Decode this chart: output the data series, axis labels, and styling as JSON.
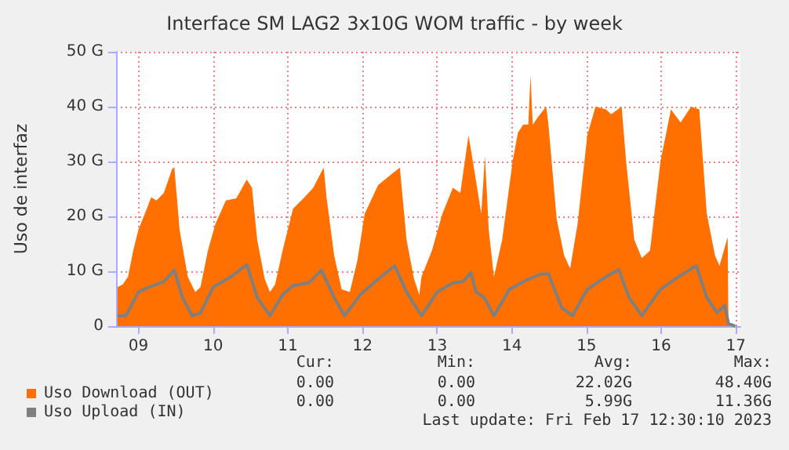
{
  "chart_data": {
    "type": "area",
    "title": "Interface SM LAG2 3x10G WOM traffic - by week",
    "ylabel": "Uso de interfaz",
    "xlim": [
      8.7,
      17.06
    ],
    "xticks": [
      {
        "value": 9,
        "label": "09"
      },
      {
        "value": 10,
        "label": "10"
      },
      {
        "value": 11,
        "label": "11"
      },
      {
        "value": 12,
        "label": "12"
      },
      {
        "value": 13,
        "label": "13"
      },
      {
        "value": 14,
        "label": "14"
      },
      {
        "value": 15,
        "label": "15"
      },
      {
        "value": 16,
        "label": "16"
      },
      {
        "value": 17,
        "label": "17"
      }
    ],
    "ylim": [
      0,
      50
    ],
    "yticks": [
      0,
      {
        "value": 10,
        "label": "10 G"
      },
      {
        "value": 20,
        "label": "20 G"
      },
      {
        "value": 30,
        "label": "30 G"
      },
      {
        "value": 40,
        "label": "40 G"
      },
      {
        "value": 50,
        "label": "50 G"
      }
    ],
    "grid": true,
    "legend": "bottom left",
    "marker": "none",
    "series": [
      {
        "name": "Uso Download (OUT)",
        "color": "#ff7000",
        "x": [
          8.72,
          8.79,
          8.86,
          8.93,
          9.0,
          9.1,
          9.17,
          9.24,
          9.34,
          9.45,
          9.48,
          9.55,
          9.66,
          9.76,
          9.83,
          9.93,
          10.03,
          10.17,
          10.31,
          10.45,
          10.52,
          10.59,
          10.69,
          10.76,
          10.83,
          10.93,
          11.07,
          11.21,
          11.34,
          11.48,
          11.52,
          11.62,
          11.72,
          11.83,
          11.93,
          12.03,
          12.21,
          12.38,
          12.5,
          12.59,
          12.69,
          12.76,
          12.79,
          12.93,
          13.07,
          13.21,
          13.31,
          13.42,
          13.49,
          13.59,
          13.64,
          13.69,
          13.76,
          13.87,
          14.01,
          14.08,
          14.15,
          14.22,
          14.25,
          14.28,
          14.35,
          14.46,
          14.49,
          14.6,
          14.7,
          14.78,
          14.88,
          15.01,
          15.12,
          15.26,
          15.33,
          15.47,
          15.53,
          15.64,
          15.74,
          15.85,
          15.99,
          16.13,
          16.26,
          16.4,
          16.51,
          16.61,
          16.72,
          16.78,
          16.89,
          16.9,
          16.99
        ],
        "values": [
          7.1,
          7.6,
          9,
          13.8,
          17.6,
          21,
          23.5,
          22.9,
          24.3,
          28.6,
          29,
          17.6,
          9,
          6.2,
          7.1,
          13.8,
          18.6,
          22.9,
          23.3,
          26.7,
          25.2,
          15.7,
          8.6,
          6.2,
          7.6,
          13.8,
          21.4,
          23.3,
          25.2,
          28.9,
          23.3,
          12.9,
          6.7,
          6.2,
          11.9,
          20.5,
          25.7,
          27.6,
          28.9,
          15.7,
          8.6,
          5.7,
          9,
          13.8,
          20.5,
          25.2,
          24.3,
          34.8,
          29,
          20.5,
          31,
          17.6,
          9,
          15.7,
          30,
          35.2,
          36.7,
          36.7,
          45.7,
          36.7,
          38.1,
          40,
          36.7,
          19.5,
          12.9,
          10.5,
          18.6,
          34.8,
          40,
          39.5,
          38.6,
          40,
          30,
          15.7,
          12.4,
          13.8,
          30,
          39.5,
          37.1,
          40,
          39.5,
          20.5,
          12.9,
          11,
          16.2,
          0.5,
          0
        ]
      },
      {
        "name": "Uso Upload (IN)",
        "type": "line",
        "color": "#7f7f7f",
        "x": [
          8.72,
          8.83,
          9.0,
          9.14,
          9.34,
          9.48,
          9.59,
          9.72,
          9.83,
          10.0,
          10.24,
          10.45,
          10.59,
          10.76,
          10.93,
          11.07,
          11.28,
          11.45,
          11.62,
          11.76,
          11.97,
          12.17,
          12.43,
          12.59,
          12.79,
          13.0,
          13.21,
          13.35,
          13.45,
          13.52,
          13.63,
          13.76,
          13.97,
          14.18,
          14.39,
          14.49,
          14.67,
          14.81,
          15.01,
          15.26,
          15.43,
          15.57,
          15.74,
          15.99,
          16.19,
          16.47,
          16.61,
          16.75,
          16.85,
          16.9,
          16.99
        ],
        "values": [
          1.9,
          1.9,
          6.2,
          7.1,
          8.1,
          10.2,
          5.2,
          1.9,
          2.4,
          7.1,
          9,
          11.2,
          5.2,
          1.9,
          5.7,
          7.4,
          7.9,
          10.2,
          5.2,
          1.9,
          5.7,
          8.1,
          11,
          6.2,
          1.9,
          6.2,
          7.9,
          8.1,
          9.8,
          6.2,
          5.2,
          1.9,
          6.7,
          8.3,
          9.5,
          9.5,
          3.3,
          1.9,
          6.7,
          9,
          10.3,
          5.2,
          1.9,
          6.7,
          8.6,
          11,
          5.2,
          2.4,
          3.8,
          0.5,
          0
        ]
      }
    ],
    "annotations": [
      "Cur:",
      "Min:",
      "Avg:",
      "Max:",
      "0.00",
      "0.00",
      "22.02G",
      "48.40G",
      "0.00",
      "0.00",
      "5.99G",
      "11.36G",
      "Last update: Fri Feb 17 12:30:10 2023"
    ]
  }
}
